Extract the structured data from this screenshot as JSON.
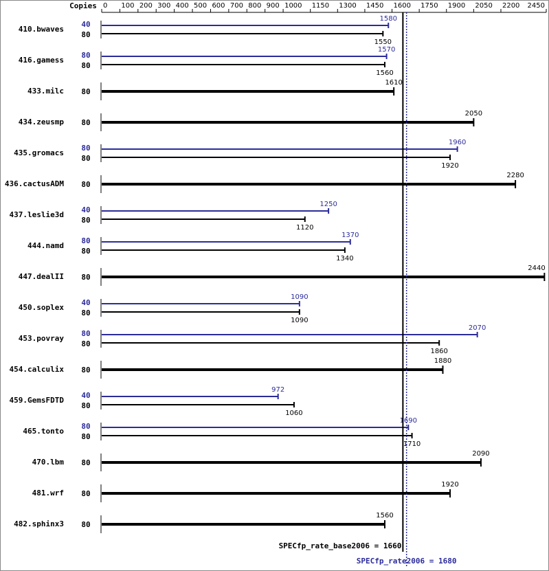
{
  "chart_data": {
    "type": "bar",
    "orientation": "horizontal",
    "copies_header": "Copies",
    "categories": [
      "410.bwaves",
      "416.gamess",
      "433.milc",
      "434.zeusmp",
      "435.gromacs",
      "436.cactusADM",
      "437.leslie3d",
      "444.namd",
      "447.dealII",
      "450.soplex",
      "453.povray",
      "454.calculix",
      "459.GemsFDTD",
      "465.tonto",
      "470.lbm",
      "481.wrf",
      "482.sphinx3"
    ],
    "series": [
      {
        "color": "#2b2b9a",
        "copies": [
          40,
          80,
          null,
          null,
          80,
          null,
          40,
          80,
          null,
          40,
          80,
          null,
          40,
          80,
          null,
          null,
          null
        ],
        "values": [
          1580,
          1570,
          null,
          null,
          1960,
          null,
          1250,
          1370,
          null,
          1090,
          2070,
          null,
          972,
          1690,
          null,
          null,
          null
        ]
      },
      {
        "color": "#000000",
        "copies": [
          80,
          80,
          80,
          80,
          80,
          80,
          80,
          80,
          80,
          80,
          80,
          80,
          80,
          80,
          80,
          80,
          80
        ],
        "values": [
          1550,
          1560,
          1610,
          2050,
          1920,
          2280,
          1120,
          1340,
          2440,
          1090,
          1860,
          1880,
          1060,
          1710,
          2090,
          1920,
          1560
        ]
      }
    ],
    "xlim": [
      0,
      2450
    ],
    "xticks": [
      0,
      100,
      200,
      300,
      400,
      500,
      600,
      700,
      800,
      900,
      1000,
      1150,
      1300,
      1450,
      1600,
      1750,
      1900,
      2050,
      2200,
      2450
    ],
    "reference_lines": [
      {
        "label": "SPECfp_rate_base2006 = 1660",
        "value": 1660,
        "color": "#000000",
        "dashed": false
      },
      {
        "label": "SPECfp_rate2006 = 1680",
        "value": 1680,
        "color": "#2b2b9a",
        "dashed": true
      }
    ]
  }
}
